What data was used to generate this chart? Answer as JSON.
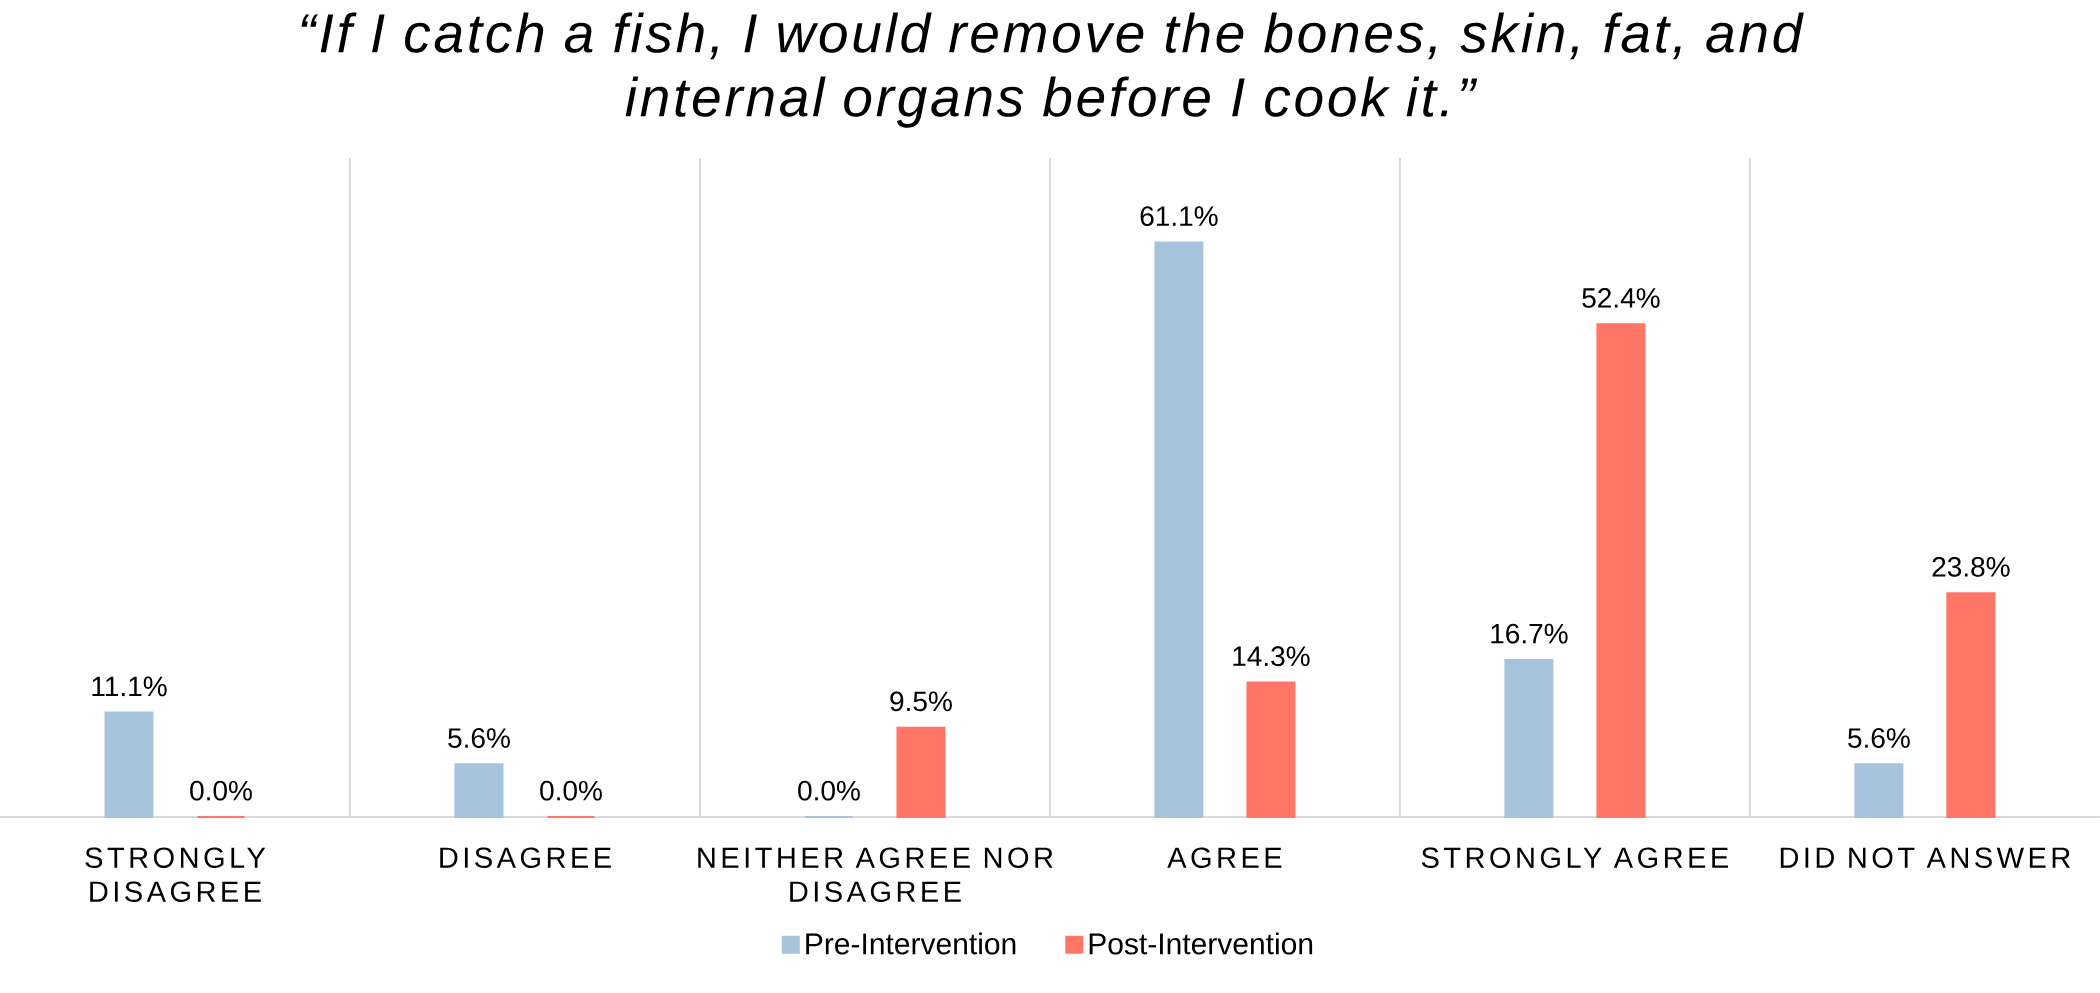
{
  "chart_data": {
    "type": "bar",
    "title": "“If I catch a fish, I would remove the bones, skin, fat, and internal organs before I cook it.”",
    "categories": [
      "STRONGLY DISAGREE",
      "DISAGREE",
      "NEITHER AGREE NOR DISAGREE",
      "AGREE",
      "STRONGLY AGREE",
      "DID NOT ANSWER"
    ],
    "series": [
      {
        "name": "Pre-Intervention",
        "color": "#a7c4dc",
        "values": [
          11.1,
          5.6,
          0.0,
          61.1,
          16.7,
          5.6
        ],
        "value_labels": [
          "11.1%",
          "5.6%",
          "0.0%",
          "61.1%",
          "16.7%",
          "5.6%"
        ]
      },
      {
        "name": "Post-Intervention",
        "color": "#ff7667",
        "values": [
          0.0,
          0.0,
          9.5,
          14.3,
          52.4,
          23.8
        ],
        "value_labels": [
          "0.0%",
          "0.0%",
          "9.5%",
          "14.3%",
          "52.4%",
          "23.8%"
        ]
      }
    ],
    "grid": "x",
    "legend": "bottom",
    "tick_labels": "x"
  }
}
